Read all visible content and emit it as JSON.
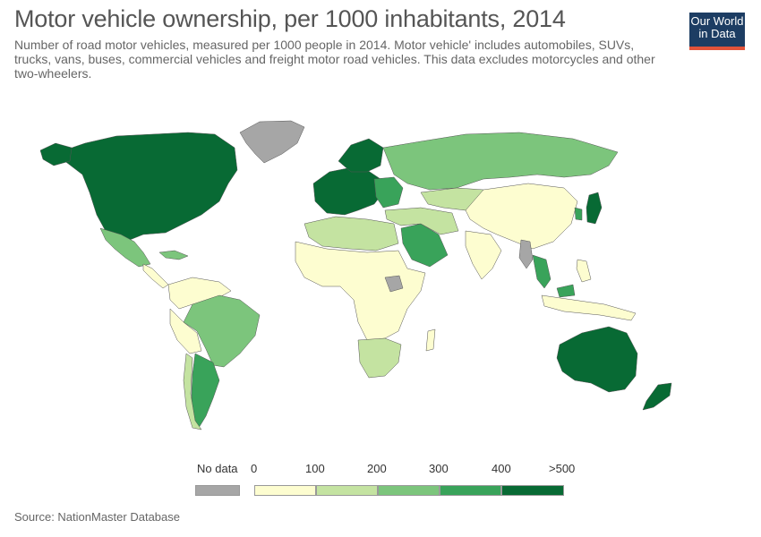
{
  "header": {
    "title": "Motor vehicle ownership, per 1000 inhabitants, 2014",
    "subtitle": "Number of road motor vehicles, measured per 1000 people in 2014. Motor vehicle' includes automobiles, SUVs, trucks, vans, buses, commercial vehicles and freight motor road vehicles. This data excludes motorcycles and other two-wheelers."
  },
  "logo": {
    "line1": "Our World",
    "line2": "in Data"
  },
  "legend": {
    "no_data_label": "No data",
    "ticks": [
      "0",
      "100",
      "200",
      "300",
      "400",
      ">500"
    ],
    "colors": {
      "no_data": "#a6a6a6",
      "bin_0_100": "#fdfdd0",
      "bin_100_200": "#c4e3a1",
      "bin_200_300": "#7cc57c",
      "bin_300_400": "#39a35a",
      "bin_400_500": "#086a34"
    }
  },
  "source": "Source: NationMaster Database"
}
